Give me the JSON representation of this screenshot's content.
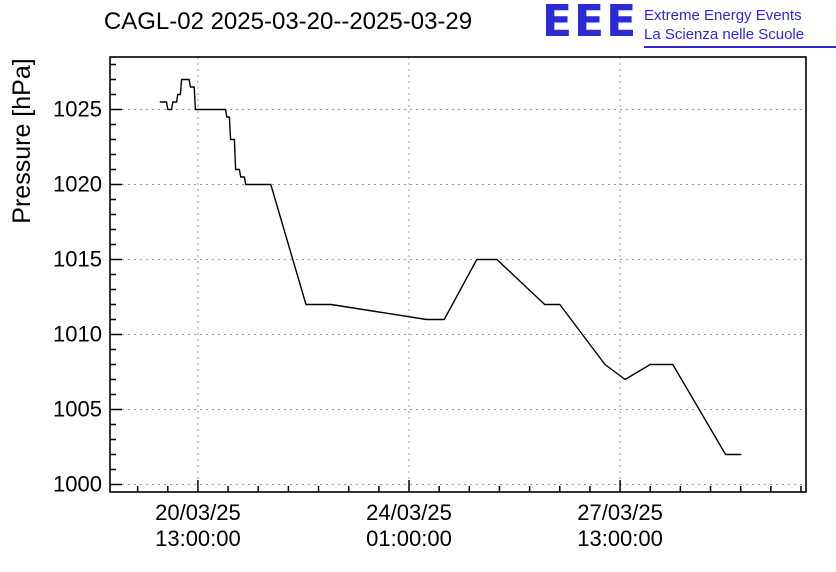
{
  "header": {
    "logo": {
      "acronym": "EEE",
      "line1": "Extreme Energy Events",
      "line2": "La Scienza nelle Scuole",
      "color": "#2b2bd5"
    }
  },
  "chart_data": {
    "type": "line",
    "title": "CAGL-02 2025-03-20--2025-03-29",
    "xlabel": "",
    "ylabel": "Pressure [hPa]",
    "ylim": [
      999.5,
      1028.5
    ],
    "xlim": [
      -22,
      255
    ],
    "x_unit": "hours_since_2025-03-20T00:00",
    "grid": "dashed",
    "legend": "none",
    "y_ticks": [
      1000,
      1005,
      1010,
      1015,
      1020,
      1025
    ],
    "y_minor_step": 1,
    "x_minor_step_hours": 12,
    "x_ticks": [
      {
        "t": 13,
        "date": "20/03/25",
        "time": "13:00:00"
      },
      {
        "t": 97,
        "date": "24/03/25",
        "time": "01:00:00"
      },
      {
        "t": 181,
        "date": "27/03/25",
        "time": "13:00:00"
      }
    ],
    "series": [
      {
        "name": "pressure",
        "color": "#000000",
        "points": [
          [
            -2,
            1025.5
          ],
          [
            0.5,
            1025.5
          ],
          [
            1,
            1025
          ],
          [
            2.5,
            1025
          ],
          [
            3,
            1025.5
          ],
          [
            4.5,
            1025.5
          ],
          [
            5,
            1026
          ],
          [
            6,
            1026
          ],
          [
            6.5,
            1027
          ],
          [
            9.5,
            1027
          ],
          [
            10,
            1026.5
          ],
          [
            11.5,
            1026.5
          ],
          [
            12,
            1025
          ],
          [
            24,
            1025
          ],
          [
            24.5,
            1024.5
          ],
          [
            25.5,
            1024.5
          ],
          [
            26,
            1023
          ],
          [
            27.5,
            1023
          ],
          [
            28,
            1021
          ],
          [
            29.5,
            1021
          ],
          [
            30,
            1020.5
          ],
          [
            31.5,
            1020.5
          ],
          [
            32,
            1020
          ],
          [
            42,
            1020
          ],
          [
            56,
            1012
          ],
          [
            66,
            1012
          ],
          [
            104,
            1011
          ],
          [
            111,
            1011
          ],
          [
            124,
            1015
          ],
          [
            132,
            1015
          ],
          [
            151,
            1012
          ],
          [
            157,
            1012
          ],
          [
            175,
            1008
          ],
          [
            183,
            1007
          ],
          [
            193,
            1008
          ],
          [
            202,
            1008
          ],
          [
            223,
            1002
          ],
          [
            229,
            1002
          ]
        ]
      }
    ]
  }
}
